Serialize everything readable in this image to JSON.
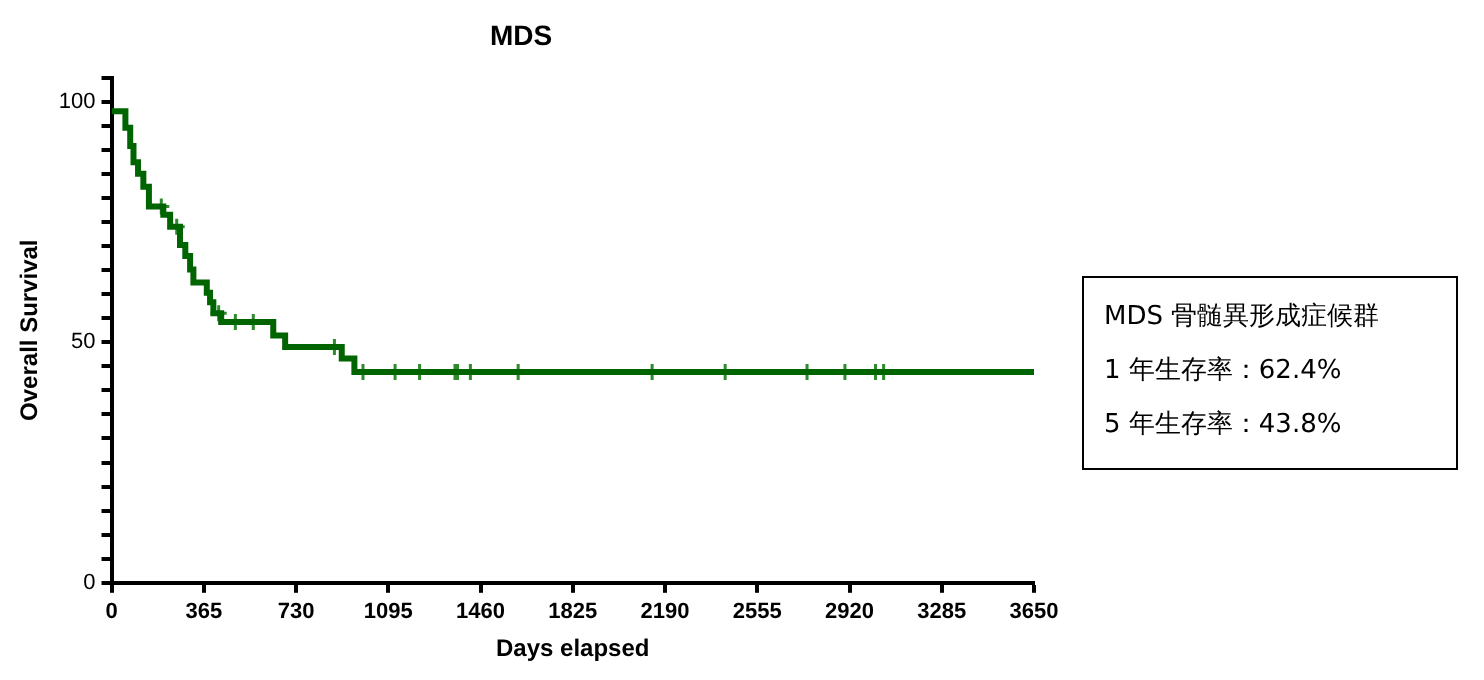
{
  "chart_data": {
    "type": "step",
    "title": "MDS",
    "xlabel": "Days elapsed",
    "ylabel": "Overall Survival",
    "xlim": [
      0,
      3650
    ],
    "xticks": [
      0,
      365,
      730,
      1095,
      1460,
      1825,
      2190,
      2555,
      2920,
      3285,
      3650
    ],
    "ylim": [
      0,
      105
    ],
    "yticks": [
      0,
      {
        "value": 5,
        "label": null
      },
      {
        "value": 10,
        "label": null
      },
      {
        "value": 15,
        "label": null
      },
      {
        "value": 20,
        "label": null
      },
      {
        "value": 25,
        "label": null
      },
      {
        "value": 30,
        "label": null
      },
      {
        "value": 35,
        "label": null
      },
      {
        "value": 40,
        "label": null
      },
      {
        "value": 45,
        "label": null
      },
      50,
      {
        "value": 55,
        "label": null
      },
      {
        "value": 60,
        "label": null
      },
      {
        "value": 65,
        "label": null
      },
      {
        "value": 70,
        "label": null
      },
      {
        "value": 75,
        "label": null
      },
      {
        "value": 80,
        "label": null
      },
      {
        "value": 85,
        "label": null
      },
      {
        "value": 90,
        "label": null
      },
      {
        "value": 95,
        "label": null
      },
      100,
      {
        "value": 105,
        "label": null
      }
    ],
    "grid": false,
    "legend": false,
    "series": [
      {
        "color": "#006400",
        "x": [
          0,
          55,
          74,
          87,
          105,
          126,
          148,
          205,
          232,
          271,
          292,
          311,
          324,
          377,
          390,
          403,
          434,
          640,
          687,
          911,
          961,
          3650
        ],
        "values": [
          98,
          94.6,
          90.8,
          87.4,
          85,
          82.3,
          78.2,
          76.5,
          74,
          70.2,
          67.9,
          65.1,
          62.4,
          60.3,
          58.3,
          56,
          54.2,
          51.4,
          49,
          46.6,
          43.8,
          43.8
        ]
      },
      {
        "type": "scatter",
        "marker": "cross",
        "color": "#2e8b2e",
        "x": [
          197,
          258,
          424,
          490,
          561,
          882,
          995,
          1122,
          1219,
          1359,
          1369,
          1420,
          1609,
          2139,
          2428,
          2752,
          2902,
          3023,
          3055
        ],
        "values": [
          78.2,
          74,
          56,
          54.2,
          54.2,
          49,
          43.8,
          43.8,
          43.8,
          43.8,
          43.8,
          43.8,
          43.8,
          43.8,
          43.8,
          43.8,
          43.8,
          43.8,
          43.8
        ]
      }
    ],
    "annotations": [
      "MDS 骨髄異形成症候群",
      "1 年生存率：62.4%",
      "5 年生存率：43.8%"
    ]
  }
}
